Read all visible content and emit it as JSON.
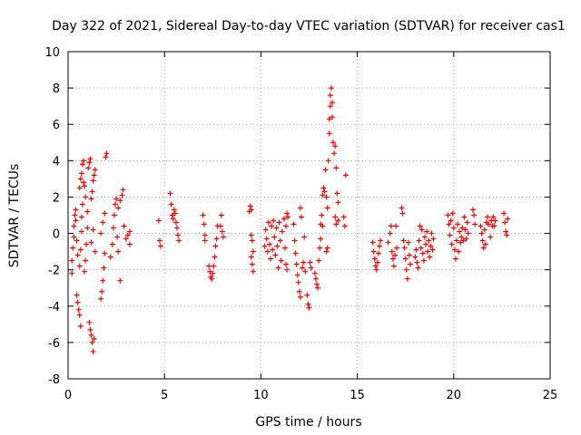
{
  "chart_data": {
    "type": "scatter",
    "title": "Day 322 of 2021, Sidereal Day-to-day VTEC variation (SDTVAR) for receiver cas1",
    "xlabel": "GPS time / hours",
    "ylabel": "SDTVAR / TECUs",
    "xlim": [
      0,
      25
    ],
    "ylim": [
      -8,
      10
    ],
    "xticks": [
      0,
      5,
      10,
      15,
      20,
      25
    ],
    "yticks": [
      -8,
      -6,
      -4,
      -2,
      0,
      2,
      4,
      6,
      8,
      10
    ],
    "grid": true,
    "marker": "+",
    "color": "#ff0000",
    "series": [
      {
        "name": "SDTVAR",
        "points": [
          [
            0.2,
            -2.2
          ],
          [
            0.2,
            -1.5
          ],
          [
            0.25,
            -0.8
          ],
          [
            0.3,
            -0.2
          ],
          [
            0.3,
            0.4
          ],
          [
            0.35,
            1.0
          ],
          [
            0.4,
            1.3
          ],
          [
            0.4,
            0.7
          ],
          [
            0.45,
            -0.4
          ],
          [
            0.5,
            -1.2
          ],
          [
            0.45,
            -3.4
          ],
          [
            0.5,
            -3.8
          ],
          [
            0.55,
            -4.2
          ],
          [
            0.6,
            -4.5
          ],
          [
            0.65,
            -5.1
          ],
          [
            0.6,
            -1.8
          ],
          [
            0.65,
            -0.9
          ],
          [
            0.7,
            0.1
          ],
          [
            0.7,
            0.9
          ],
          [
            0.75,
            1.6
          ],
          [
            0.6,
            2.5
          ],
          [
            0.65,
            3.0
          ],
          [
            0.7,
            3.3
          ],
          [
            0.75,
            3.8
          ],
          [
            0.8,
            4.0
          ],
          [
            0.8,
            2.8
          ],
          [
            0.85,
            2.6
          ],
          [
            0.9,
            2.0
          ],
          [
            0.85,
            -2.1
          ],
          [
            0.9,
            -1.5
          ],
          [
            0.95,
            -0.6
          ],
          [
            1.0,
            0.3
          ],
          [
            1.0,
            1.2
          ],
          [
            1.05,
            3.6
          ],
          [
            1.1,
            3.9
          ],
          [
            1.15,
            4.1
          ],
          [
            1.1,
            -4.9
          ],
          [
            1.15,
            -5.3
          ],
          [
            1.2,
            -5.6
          ],
          [
            1.25,
            -6.0
          ],
          [
            1.3,
            -6.5
          ],
          [
            1.35,
            -5.8
          ],
          [
            1.2,
            1.9
          ],
          [
            1.25,
            2.3
          ],
          [
            1.3,
            2.9
          ],
          [
            1.35,
            3.2
          ],
          [
            1.4,
            3.5
          ],
          [
            1.2,
            -0.5
          ],
          [
            1.3,
            0.2
          ],
          [
            1.4,
            -1.0
          ],
          [
            1.7,
            -3.6
          ],
          [
            1.75,
            -3.2
          ],
          [
            1.8,
            -2.6
          ],
          [
            1.85,
            -1.9
          ],
          [
            1.9,
            -1.1
          ],
          [
            1.7,
            0.0
          ],
          [
            1.8,
            0.6
          ],
          [
            1.9,
            1.1
          ],
          [
            1.95,
            4.2
          ],
          [
            2.0,
            4.4
          ],
          [
            2.2,
            -1.3
          ],
          [
            2.3,
            -0.6
          ],
          [
            2.35,
            0.3
          ],
          [
            2.4,
            1.0
          ],
          [
            2.45,
            1.6
          ],
          [
            2.5,
            1.9
          ],
          [
            2.55,
            -0.2
          ],
          [
            2.6,
            -1.0
          ],
          [
            2.6,
            1.4
          ],
          [
            2.7,
            1.8
          ],
          [
            2.8,
            2.1
          ],
          [
            2.85,
            2.4
          ],
          [
            2.7,
            -2.6
          ],
          [
            2.9,
            0.4
          ],
          [
            3.0,
            -0.3
          ],
          [
            3.1,
            -0.1
          ],
          [
            3.2,
            -0.6
          ],
          [
            3.2,
            0.1
          ],
          [
            4.7,
            0.7
          ],
          [
            4.75,
            -0.4
          ],
          [
            4.8,
            -0.7
          ],
          [
            5.3,
            2.2
          ],
          [
            5.35,
            1.6
          ],
          [
            5.4,
            1.0
          ],
          [
            5.45,
            0.8
          ],
          [
            5.5,
            1.3
          ],
          [
            5.55,
            1.1
          ],
          [
            5.6,
            0.6
          ],
          [
            5.65,
            0.3
          ],
          [
            5.7,
            -0.1
          ],
          [
            5.75,
            -0.4
          ],
          [
            7.0,
            1.0
          ],
          [
            7.05,
            0.5
          ],
          [
            7.1,
            -0.1
          ],
          [
            7.1,
            -0.4
          ],
          [
            7.3,
            -1.8
          ],
          [
            7.35,
            -2.1
          ],
          [
            7.4,
            -2.4
          ],
          [
            7.45,
            -2.5
          ],
          [
            7.5,
            -2.2
          ],
          [
            7.55,
            -1.8
          ],
          [
            7.6,
            -1.3
          ],
          [
            7.65,
            -0.7
          ],
          [
            7.7,
            -0.3
          ],
          [
            7.75,
            0.4
          ],
          [
            7.9,
            0.4
          ],
          [
            7.95,
            1.0
          ],
          [
            8.0,
            0.1
          ],
          [
            8.05,
            -0.2
          ],
          [
            9.4,
            1.2
          ],
          [
            9.45,
            1.5
          ],
          [
            9.5,
            1.3
          ],
          [
            9.5,
            -1.3
          ],
          [
            9.55,
            -1.7
          ],
          [
            9.6,
            -2.1
          ],
          [
            9.6,
            -1.0
          ],
          [
            9.55,
            -0.4
          ],
          [
            9.5,
            -0.1
          ],
          [
            10.2,
            -0.7
          ],
          [
            10.25,
            0.2
          ],
          [
            10.3,
            -0.3
          ],
          [
            10.35,
            -1.0
          ],
          [
            10.4,
            0.6
          ],
          [
            10.45,
            -0.6
          ],
          [
            10.5,
            -1.4
          ],
          [
            10.55,
            0.4
          ],
          [
            10.6,
            -0.9
          ],
          [
            10.65,
            0.7
          ],
          [
            10.7,
            -0.2
          ],
          [
            10.75,
            -1.2
          ],
          [
            10.8,
            0.3
          ],
          [
            10.85,
            -0.7
          ],
          [
            10.9,
            -1.9
          ],
          [
            10.95,
            0.6
          ],
          [
            11.0,
            -0.4
          ],
          [
            11.05,
            -1.5
          ],
          [
            11.1,
            0.1
          ],
          [
            11.2,
            0.8
          ],
          [
            11.25,
            -0.8
          ],
          [
            11.3,
            0.4
          ],
          [
            11.35,
            1.1
          ],
          [
            11.4,
            0.9
          ],
          [
            11.3,
            -1.7
          ],
          [
            11.35,
            -2.0
          ],
          [
            11.7,
            0.5
          ],
          [
            11.75,
            -0.4
          ],
          [
            11.8,
            -1.1
          ],
          [
            11.85,
            -1.7
          ],
          [
            11.9,
            -2.3
          ],
          [
            11.95,
            -2.7
          ],
          [
            12.0,
            -3.2
          ],
          [
            12.05,
            -3.5
          ],
          [
            12.05,
            1.4
          ],
          [
            12.1,
            0.9
          ],
          [
            12.15,
            -1.9
          ],
          [
            12.2,
            -1.6
          ],
          [
            12.25,
            -0.2
          ],
          [
            12.3,
            -2.1
          ],
          [
            12.4,
            -3.4
          ],
          [
            12.45,
            -3.9
          ],
          [
            12.5,
            -4.1
          ],
          [
            12.55,
            -1.6
          ],
          [
            12.6,
            -1.9
          ],
          [
            12.8,
            -2.2
          ],
          [
            12.85,
            -2.5
          ],
          [
            12.9,
            -2.8
          ],
          [
            12.95,
            -3.0
          ],
          [
            13.0,
            -1.5
          ],
          [
            13.05,
            -0.8
          ],
          [
            13.1,
            -0.3
          ],
          [
            13.1,
            0.5
          ],
          [
            13.15,
            1.0
          ],
          [
            13.2,
            0.4
          ],
          [
            13.2,
            2.1
          ],
          [
            13.25,
            2.5
          ],
          [
            13.3,
            2.3
          ],
          [
            13.35,
            3.5
          ],
          [
            13.4,
            2.0
          ],
          [
            13.45,
            1.4
          ],
          [
            13.4,
            -1.0
          ],
          [
            13.45,
            -0.8
          ],
          [
            13.5,
            4.0
          ],
          [
            13.55,
            5.5
          ],
          [
            13.55,
            6.3
          ],
          [
            13.6,
            7.0
          ],
          [
            13.6,
            7.6
          ],
          [
            13.65,
            8.0
          ],
          [
            13.7,
            7.2
          ],
          [
            13.7,
            6.4
          ],
          [
            13.75,
            5.0
          ],
          [
            13.8,
            4.4
          ],
          [
            13.85,
            4.8
          ],
          [
            13.9,
            3.6
          ],
          [
            13.95,
            2.2
          ],
          [
            14.0,
            1.7
          ],
          [
            13.85,
            0.9
          ],
          [
            13.9,
            0.5
          ],
          [
            14.0,
            0.7
          ],
          [
            14.3,
            0.9
          ],
          [
            14.35,
            0.4
          ],
          [
            14.4,
            3.2
          ],
          [
            15.8,
            -0.5
          ],
          [
            15.85,
            -1.0
          ],
          [
            15.9,
            -1.4
          ],
          [
            15.95,
            -1.8
          ],
          [
            16.0,
            -2.0
          ],
          [
            16.05,
            -1.6
          ],
          [
            16.1,
            -1.1
          ],
          [
            16.15,
            -0.7
          ],
          [
            16.2,
            -0.4
          ],
          [
            16.6,
            -0.5
          ],
          [
            16.7,
            0.0
          ],
          [
            16.75,
            0.4
          ],
          [
            16.8,
            -1.0
          ],
          [
            16.85,
            -1.4
          ],
          [
            16.9,
            -1.8
          ],
          [
            16.95,
            -1.2
          ],
          [
            17.0,
            0.4
          ],
          [
            17.05,
            -0.8
          ],
          [
            17.3,
            1.4
          ],
          [
            17.35,
            1.1
          ],
          [
            17.4,
            -0.4
          ],
          [
            17.45,
            -0.8
          ],
          [
            17.5,
            -1.4
          ],
          [
            17.55,
            -2.0
          ],
          [
            17.6,
            -2.5
          ],
          [
            17.65,
            -0.5
          ],
          [
            17.7,
            -1.2
          ],
          [
            17.75,
            -1.7
          ],
          [
            18.0,
            -1.3
          ],
          [
            18.05,
            -0.9
          ],
          [
            18.1,
            -1.6
          ],
          [
            18.15,
            -1.9
          ],
          [
            18.2,
            -0.4
          ],
          [
            18.25,
            0.4
          ],
          [
            18.3,
            -0.8
          ],
          [
            18.35,
            0.2
          ],
          [
            18.4,
            -1.1
          ],
          [
            18.45,
            -1.5
          ],
          [
            18.5,
            -0.2
          ],
          [
            18.55,
            -0.6
          ],
          [
            18.6,
            0.1
          ],
          [
            18.65,
            -1.0
          ],
          [
            18.7,
            -0.4
          ],
          [
            18.75,
            -1.3
          ],
          [
            18.8,
            -0.7
          ],
          [
            18.85,
            0.0
          ],
          [
            18.9,
            -0.9
          ],
          [
            18.95,
            -0.3
          ],
          [
            19.7,
            1.0
          ],
          [
            19.75,
            0.5
          ],
          [
            19.8,
            -0.1
          ],
          [
            19.85,
            0.7
          ],
          [
            19.9,
            -0.6
          ],
          [
            19.95,
            1.1
          ],
          [
            20.0,
            0.3
          ],
          [
            20.05,
            -0.9
          ],
          [
            20.1,
            -1.4
          ],
          [
            20.15,
            -0.4
          ],
          [
            20.2,
            0.5
          ],
          [
            20.25,
            -1.0
          ],
          [
            20.3,
            0.1
          ],
          [
            20.35,
            -0.5
          ],
          [
            20.4,
            -0.2
          ],
          [
            20.45,
            0.3
          ],
          [
            20.5,
            -0.4
          ],
          [
            20.55,
            0.9
          ],
          [
            20.6,
            0.2
          ],
          [
            20.65,
            -0.3
          ],
          [
            20.7,
            0.6
          ],
          [
            20.75,
            0.0
          ],
          [
            21.0,
            1.3
          ],
          [
            21.05,
            1.0
          ],
          [
            21.1,
            0.5
          ],
          [
            21.4,
            0.4
          ],
          [
            21.45,
            0.0
          ],
          [
            21.5,
            -0.4
          ],
          [
            21.55,
            -0.8
          ],
          [
            21.6,
            0.2
          ],
          [
            21.65,
            -0.6
          ],
          [
            21.7,
            0.6
          ],
          [
            21.75,
            0.9
          ],
          [
            21.8,
            0.5
          ],
          [
            21.9,
            -0.2
          ],
          [
            21.95,
            0.7
          ],
          [
            22.0,
            0.4
          ],
          [
            22.05,
            0.9
          ],
          [
            22.1,
            0.4
          ],
          [
            22.15,
            0.7
          ],
          [
            22.6,
            1.1
          ],
          [
            22.65,
            0.6
          ],
          [
            22.7,
            0.1
          ],
          [
            22.75,
            -0.1
          ],
          [
            22.8,
            0.8
          ]
        ]
      }
    ]
  }
}
